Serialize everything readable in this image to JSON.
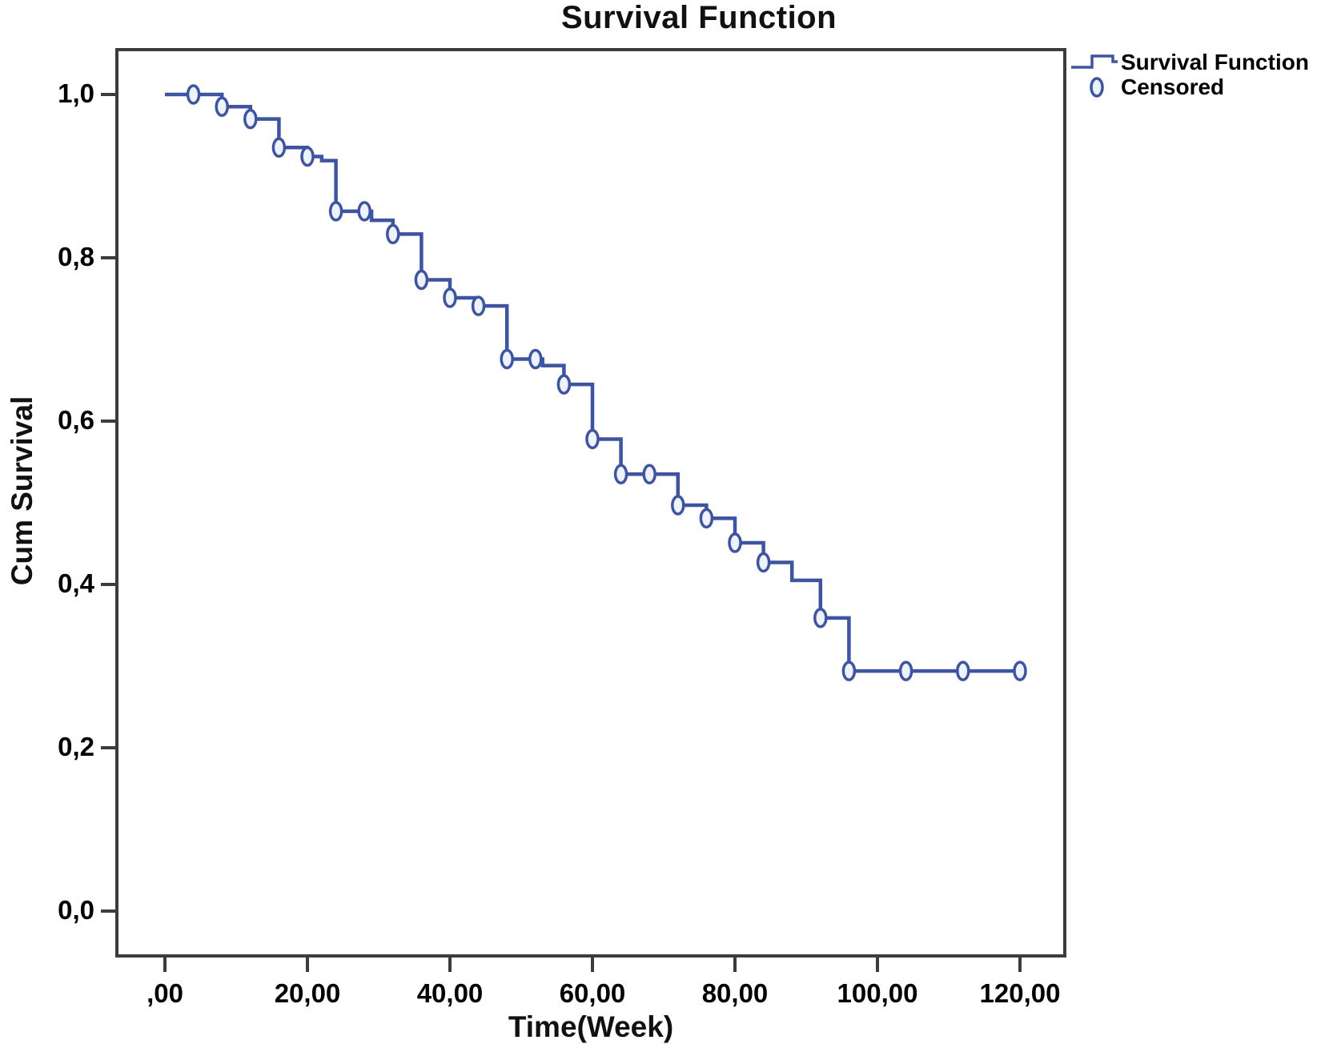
{
  "figure": {
    "title": "Survival Function"
  },
  "axes": {
    "x": {
      "label": "Time(Week)",
      "ticks": [
        {
          "value": 0,
          "label": ",00"
        },
        {
          "value": 20,
          "label": "20,00"
        },
        {
          "value": 40,
          "label": "40,00"
        },
        {
          "value": 60,
          "label": "60,00"
        },
        {
          "value": 80,
          "label": "80,00"
        },
        {
          "value": 100,
          "label": "100,00"
        },
        {
          "value": 120,
          "label": "120,00"
        }
      ]
    },
    "y": {
      "label": "Cum Survival",
      "ticks": [
        {
          "value": 1.0,
          "label": "1,0"
        },
        {
          "value": 0.8,
          "label": "0,8"
        },
        {
          "value": 0.6,
          "label": "0,6"
        },
        {
          "value": 0.4,
          "label": "0,4"
        },
        {
          "value": 0.2,
          "label": "0,2"
        },
        {
          "value": 0.0,
          "label": "0,0"
        }
      ]
    }
  },
  "legend": {
    "items": [
      {
        "label": "Survival Function",
        "marker": "step-line"
      },
      {
        "label": "Censored",
        "marker": "open-circle"
      }
    ]
  },
  "colors": {
    "curve": "#3b54a8",
    "censor_fill": "#eef2fb",
    "frame": "#3c3c3c",
    "text": "#000000"
  },
  "chart_data": {
    "type": "line",
    "subtype": "kaplan-meier-step",
    "title": "Survival Function",
    "xlabel": "Time(Week)",
    "ylabel": "Cum Survival",
    "xlim": [
      -7,
      126
    ],
    "ylim": [
      -0.04,
      1.06
    ],
    "x_ticks": [
      0,
      20,
      40,
      60,
      80,
      100,
      120
    ],
    "y_ticks": [
      0.0,
      0.2,
      0.4,
      0.6,
      0.8,
      1.0
    ],
    "grid": false,
    "legend_position": "top-right-outside",
    "series": [
      {
        "name": "Survival Function",
        "type": "step-after",
        "points": [
          [
            0,
            1.0
          ],
          [
            8,
            0.985
          ],
          [
            12,
            0.97
          ],
          [
            16,
            0.935
          ],
          [
            20,
            0.924
          ],
          [
            22,
            0.919
          ],
          [
            24,
            0.857
          ],
          [
            29,
            0.846
          ],
          [
            32,
            0.829
          ],
          [
            36,
            0.773
          ],
          [
            40,
            0.751
          ],
          [
            44,
            0.741
          ],
          [
            48,
            0.676
          ],
          [
            53,
            0.668
          ],
          [
            56,
            0.645
          ],
          [
            60,
            0.578
          ],
          [
            64,
            0.535
          ],
          [
            72,
            0.497
          ],
          [
            76,
            0.481
          ],
          [
            80,
            0.451
          ],
          [
            84,
            0.427
          ],
          [
            88,
            0.405
          ],
          [
            92,
            0.359
          ],
          [
            96,
            0.294
          ],
          [
            120,
            0.294
          ]
        ]
      },
      {
        "name": "Censored",
        "type": "scatter",
        "marker": "open-circle",
        "points": [
          [
            4,
            1.0
          ],
          [
            8,
            0.985
          ],
          [
            12,
            0.97
          ],
          [
            16,
            0.935
          ],
          [
            20,
            0.924
          ],
          [
            24,
            0.857
          ],
          [
            28,
            0.857
          ],
          [
            32,
            0.829
          ],
          [
            36,
            0.773
          ],
          [
            40,
            0.751
          ],
          [
            44,
            0.741
          ],
          [
            48,
            0.676
          ],
          [
            52,
            0.676
          ],
          [
            56,
            0.645
          ],
          [
            60,
            0.578
          ],
          [
            64,
            0.535
          ],
          [
            68,
            0.535
          ],
          [
            72,
            0.497
          ],
          [
            76,
            0.481
          ],
          [
            80,
            0.451
          ],
          [
            84,
            0.427
          ],
          [
            92,
            0.359
          ],
          [
            96,
            0.294
          ],
          [
            104,
            0.294
          ],
          [
            112,
            0.294
          ],
          [
            120,
            0.294
          ]
        ]
      }
    ]
  }
}
